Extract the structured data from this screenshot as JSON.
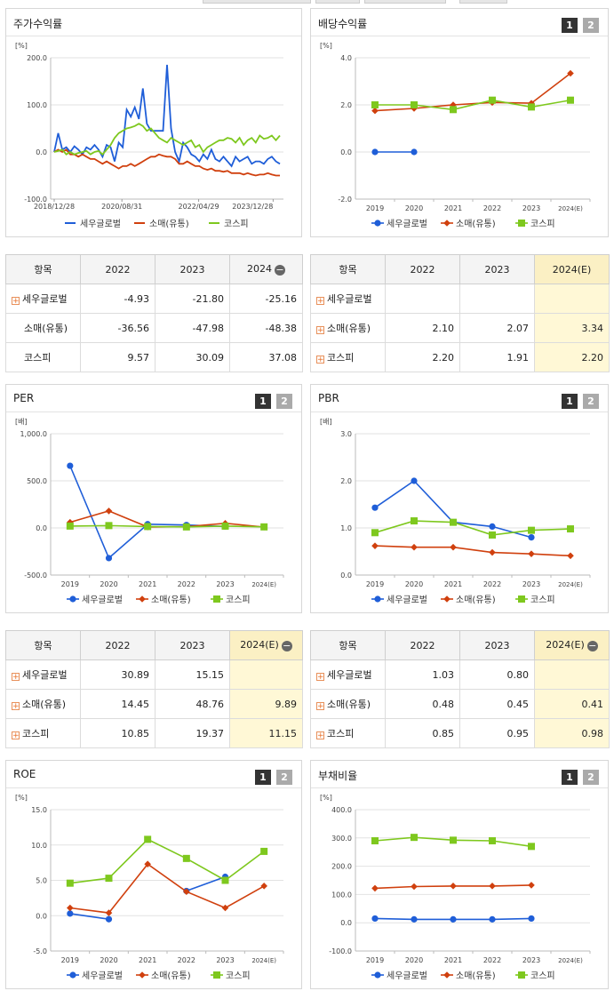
{
  "colors": {
    "sewoo": "#1f5ed8",
    "retail": "#d0400e",
    "kospi": "#7ec81e"
  },
  "legend": [
    "세우글로벌",
    "소매(유통)",
    "코스피"
  ],
  "panels": [
    {
      "title": "주가수익률",
      "unit": "[%]",
      "buttons": false,
      "chart": {
        "type": "line",
        "variant": "stock",
        "yticks": [
          "200.0",
          "100.0",
          "0.0",
          "-100.0"
        ],
        "ylim": [
          -100,
          200
        ],
        "xticks": [
          "2018/12/28",
          "2020/08/31",
          "2022/04/29",
          "2023/12/28"
        ],
        "xtick_pos": [
          0,
          0.3,
          0.64,
          0.97
        ],
        "series": [
          {
            "key": "sewoo",
            "values": [
              0,
              40,
              5,
              10,
              0,
              12,
              5,
              -5,
              10,
              5,
              15,
              5,
              -10,
              15,
              10,
              -20,
              20,
              10,
              90,
              75,
              95,
              70,
              135,
              60,
              45,
              45,
              45,
              45,
              185,
              50,
              0,
              -20,
              20,
              10,
              -5,
              -10,
              -20,
              -5,
              -15,
              5,
              -15,
              -20,
              -10,
              -20,
              -30,
              -10,
              -20,
              -15,
              -10,
              -25,
              -20,
              -20,
              -25,
              -15,
              -10,
              -20,
              -25
            ]
          },
          {
            "key": "retail",
            "values": [
              0,
              5,
              0,
              5,
              -5,
              -5,
              -10,
              -5,
              -10,
              -15,
              -15,
              -20,
              -25,
              -20,
              -25,
              -30,
              -35,
              -30,
              -30,
              -25,
              -30,
              -25,
              -20,
              -15,
              -10,
              -10,
              -5,
              -8,
              -10,
              -10,
              -15,
              -25,
              -25,
              -20,
              -25,
              -30,
              -30,
              -35,
              -38,
              -35,
              -40,
              -40,
              -42,
              -40,
              -45,
              -45,
              -45,
              -48,
              -45,
              -48,
              -50,
              -48,
              -48,
              -45,
              -48,
              -50,
              -50
            ]
          },
          {
            "key": "kospi",
            "values": [
              0,
              2,
              5,
              -5,
              0,
              -5,
              -2,
              0,
              2,
              -5,
              0,
              2,
              -5,
              5,
              15,
              30,
              40,
              45,
              50,
              52,
              55,
              60,
              55,
              45,
              50,
              40,
              30,
              25,
              20,
              30,
              25,
              20,
              15,
              20,
              25,
              10,
              15,
              0,
              10,
              15,
              20,
              25,
              25,
              30,
              28,
              20,
              30,
              15,
              25,
              30,
              20,
              35,
              28,
              30,
              35,
              25,
              35
            ]
          }
        ]
      }
    },
    {
      "title": "배당수익률",
      "unit": "[%]",
      "buttons": true,
      "chart": {
        "type": "line",
        "variant": "annual",
        "yticks": [
          "4.0",
          "2.0",
          "0.0",
          "-2.0"
        ],
        "ylim": [
          -2,
          4
        ],
        "xticks": [
          "2019",
          "2020",
          "2021",
          "2022",
          "2023",
          "2024(E)"
        ],
        "series": [
          {
            "key": "sewoo",
            "values": [
              0,
              0,
              null,
              null,
              null,
              null
            ]
          },
          {
            "key": "retail",
            "values": [
              1.75,
              1.85,
              2.0,
              2.1,
              2.07,
              3.34
            ]
          },
          {
            "key": "kospi",
            "values": [
              2.0,
              2.0,
              1.8,
              2.2,
              1.91,
              2.2
            ]
          }
        ]
      }
    },
    {
      "title": "PER",
      "unit": "[배]",
      "buttons": true,
      "chart": {
        "type": "line",
        "variant": "annual",
        "yticks": [
          "1,000.0",
          "500.0",
          "0.0",
          "-500.0"
        ],
        "ylim": [
          -500,
          1000
        ],
        "xticks": [
          "2019",
          "2020",
          "2021",
          "2022",
          "2023",
          "2024(E)"
        ],
        "series": [
          {
            "key": "sewoo",
            "values": [
              660,
              -320,
              40,
              30.89,
              15.15,
              null
            ]
          },
          {
            "key": "retail",
            "values": [
              60,
              180,
              10,
              14.45,
              48.76,
              9.89
            ]
          },
          {
            "key": "kospi",
            "values": [
              20,
              25,
              15,
              10.85,
              19.37,
              11.15
            ]
          }
        ]
      }
    },
    {
      "title": "PBR",
      "unit": "[배]",
      "buttons": true,
      "chart": {
        "type": "line",
        "variant": "annual",
        "yticks": [
          "3.0",
          "2.0",
          "1.0",
          "0.0"
        ],
        "ylim": [
          0,
          3
        ],
        "xticks": [
          "2019",
          "2020",
          "2021",
          "2022",
          "2023",
          "2024(E)"
        ],
        "series": [
          {
            "key": "sewoo",
            "values": [
              1.43,
              2.0,
              1.12,
              1.03,
              0.8,
              null
            ]
          },
          {
            "key": "retail",
            "values": [
              0.62,
              0.59,
              0.59,
              0.48,
              0.45,
              0.41
            ]
          },
          {
            "key": "kospi",
            "values": [
              0.9,
              1.15,
              1.12,
              0.85,
              0.95,
              0.98
            ]
          }
        ]
      }
    },
    {
      "title": "ROE",
      "unit": "[%]",
      "buttons": true,
      "chart": {
        "type": "line",
        "variant": "annual",
        "yticks": [
          "15.0",
          "10.0",
          "5.0",
          "0.0",
          "-5.0"
        ],
        "ylim": [
          -5,
          15
        ],
        "xticks": [
          "2019",
          "2020",
          "2021",
          "2022",
          "2023",
          "2024(E)"
        ],
        "series": [
          {
            "key": "sewoo",
            "values": [
              0.3,
              -0.5,
              null,
              3.5,
              5.5,
              null
            ]
          },
          {
            "key": "retail",
            "values": [
              1.1,
              0.4,
              7.3,
              3.4,
              1.1,
              4.2
            ]
          },
          {
            "key": "kospi",
            "values": [
              4.6,
              5.3,
              10.8,
              8.1,
              5.0,
              9.1
            ]
          }
        ]
      }
    },
    {
      "title": "부채비율",
      "unit": "[%]",
      "buttons": true,
      "chart": {
        "type": "line",
        "variant": "annual",
        "yticks": [
          "400.0",
          "300.0",
          "200.0",
          "100.0",
          "0.0",
          "-100.0"
        ],
        "ylim": [
          -100,
          400
        ],
        "xticks": [
          "2019",
          "2020",
          "2021",
          "2022",
          "2023",
          "2024(E)"
        ],
        "series": [
          {
            "key": "sewoo",
            "values": [
              15,
              12,
              12,
              12,
              15,
              null
            ]
          },
          {
            "key": "retail",
            "values": [
              122,
              128,
              130,
              130,
              133,
              null
            ]
          },
          {
            "key": "kospi",
            "values": [
              290,
              302,
              292,
              290,
              270,
              null
            ]
          }
        ]
      }
    }
  ],
  "tables": [
    {
      "header": [
        "항목",
        "2022",
        "2023",
        "2024"
      ],
      "minus": true,
      "rows": [
        {
          "name": "세우글로벌",
          "plus": true,
          "cells": [
            "-4.93",
            "-21.80",
            "-25.16"
          ]
        },
        {
          "name": "소매(유통)",
          "plus": false,
          "cells": [
            "-36.56",
            "-47.98",
            "-48.38"
          ]
        },
        {
          "name": "코스피",
          "plus": false,
          "cells": [
            "9.57",
            "30.09",
            "37.08"
          ]
        }
      ],
      "highlight_last": false
    },
    {
      "header": [
        "항목",
        "2022",
        "2023",
        "2024(E)"
      ],
      "minus": false,
      "rows": [
        {
          "name": "세우글로벌",
          "plus": true,
          "cells": [
            "",
            "",
            ""
          ]
        },
        {
          "name": "소매(유통)",
          "plus": true,
          "cells": [
            "2.10",
            "2.07",
            "3.34"
          ]
        },
        {
          "name": "코스피",
          "plus": true,
          "cells": [
            "2.20",
            "1.91",
            "2.20"
          ]
        }
      ],
      "highlight_last": true
    },
    {
      "header": [
        "항목",
        "2022",
        "2023",
        "2024(E)"
      ],
      "minus": true,
      "rows": [
        {
          "name": "세우글로벌",
          "plus": true,
          "cells": [
            "30.89",
            "15.15",
            ""
          ]
        },
        {
          "name": "소매(유통)",
          "plus": true,
          "cells": [
            "14.45",
            "48.76",
            "9.89"
          ]
        },
        {
          "name": "코스피",
          "plus": true,
          "cells": [
            "10.85",
            "19.37",
            "11.15"
          ]
        }
      ],
      "highlight_last": true
    },
    {
      "header": [
        "항목",
        "2022",
        "2023",
        "2024(E)"
      ],
      "minus": true,
      "rows": [
        {
          "name": "세우글로벌",
          "plus": true,
          "cells": [
            "1.03",
            "0.80",
            ""
          ]
        },
        {
          "name": "소매(유통)",
          "plus": true,
          "cells": [
            "0.48",
            "0.45",
            "0.41"
          ]
        },
        {
          "name": "코스피",
          "plus": true,
          "cells": [
            "0.85",
            "0.95",
            "0.98"
          ]
        }
      ],
      "highlight_last": true
    }
  ],
  "chart_data": [
    {
      "type": "line",
      "title": "주가수익률",
      "ylabel": "[%]",
      "x": [
        "2018/12/28",
        "2020/08/31",
        "2022/04/29",
        "2023/12/28"
      ],
      "ylim": [
        -100,
        200
      ],
      "series": [
        {
          "name": "세우글로벌",
          "values": [
            0,
            90,
            185,
            -25
          ]
        },
        {
          "name": "소매(유통)",
          "values": [
            0,
            -30,
            -10,
            -50
          ]
        },
        {
          "name": "코스피",
          "values": [
            0,
            50,
            20,
            35
          ]
        }
      ]
    },
    {
      "type": "line",
      "title": "배당수익률",
      "ylabel": "[%]",
      "x": [
        "2019",
        "2020",
        "2021",
        "2022",
        "2023",
        "2024(E)"
      ],
      "ylim": [
        -2,
        4
      ],
      "series": [
        {
          "name": "세우글로벌",
          "values": [
            0,
            0,
            null,
            null,
            null,
            null
          ]
        },
        {
          "name": "소매(유통)",
          "values": [
            1.75,
            1.85,
            2.0,
            2.1,
            2.07,
            3.34
          ]
        },
        {
          "name": "코스피",
          "values": [
            2.0,
            2.0,
            1.8,
            2.2,
            1.91,
            2.2
          ]
        }
      ]
    },
    {
      "type": "line",
      "title": "PER",
      "ylabel": "[배]",
      "x": [
        "2019",
        "2020",
        "2021",
        "2022",
        "2023",
        "2024(E)"
      ],
      "ylim": [
        -500,
        1000
      ],
      "series": [
        {
          "name": "세우글로벌",
          "values": [
            660,
            -320,
            40,
            30.89,
            15.15,
            null
          ]
        },
        {
          "name": "소매(유통)",
          "values": [
            60,
            180,
            10,
            14.45,
            48.76,
            9.89
          ]
        },
        {
          "name": "코스피",
          "values": [
            20,
            25,
            15,
            10.85,
            19.37,
            11.15
          ]
        }
      ]
    },
    {
      "type": "line",
      "title": "PBR",
      "ylabel": "[배]",
      "x": [
        "2019",
        "2020",
        "2021",
        "2022",
        "2023",
        "2024(E)"
      ],
      "ylim": [
        0,
        3
      ],
      "series": [
        {
          "name": "세우글로벌",
          "values": [
            1.43,
            2.0,
            1.12,
            1.03,
            0.8,
            null
          ]
        },
        {
          "name": "소매(유통)",
          "values": [
            0.62,
            0.59,
            0.59,
            0.48,
            0.45,
            0.41
          ]
        },
        {
          "name": "코스피",
          "values": [
            0.9,
            1.15,
            1.12,
            0.85,
            0.95,
            0.98
          ]
        }
      ]
    },
    {
      "type": "line",
      "title": "ROE",
      "ylabel": "[%]",
      "x": [
        "2019",
        "2020",
        "2021",
        "2022",
        "2023",
        "2024(E)"
      ],
      "ylim": [
        -5,
        15
      ],
      "series": [
        {
          "name": "세우글로벌",
          "values": [
            0.3,
            -0.5,
            null,
            3.5,
            5.5,
            null
          ]
        },
        {
          "name": "소매(유통)",
          "values": [
            1.1,
            0.4,
            7.3,
            3.4,
            1.1,
            4.2
          ]
        },
        {
          "name": "코스피",
          "values": [
            4.6,
            5.3,
            10.8,
            8.1,
            5.0,
            9.1
          ]
        }
      ]
    },
    {
      "type": "line",
      "title": "부채비율",
      "ylabel": "[%]",
      "x": [
        "2019",
        "2020",
        "2021",
        "2022",
        "2023",
        "2024(E)"
      ],
      "ylim": [
        -100,
        400
      ],
      "series": [
        {
          "name": "세우글로벌",
          "values": [
            15,
            12,
            12,
            12,
            15,
            null
          ]
        },
        {
          "name": "소매(유통)",
          "values": [
            122,
            128,
            130,
            130,
            133,
            null
          ]
        },
        {
          "name": "코스피",
          "values": [
            290,
            302,
            292,
            290,
            270,
            null
          ]
        }
      ]
    }
  ]
}
